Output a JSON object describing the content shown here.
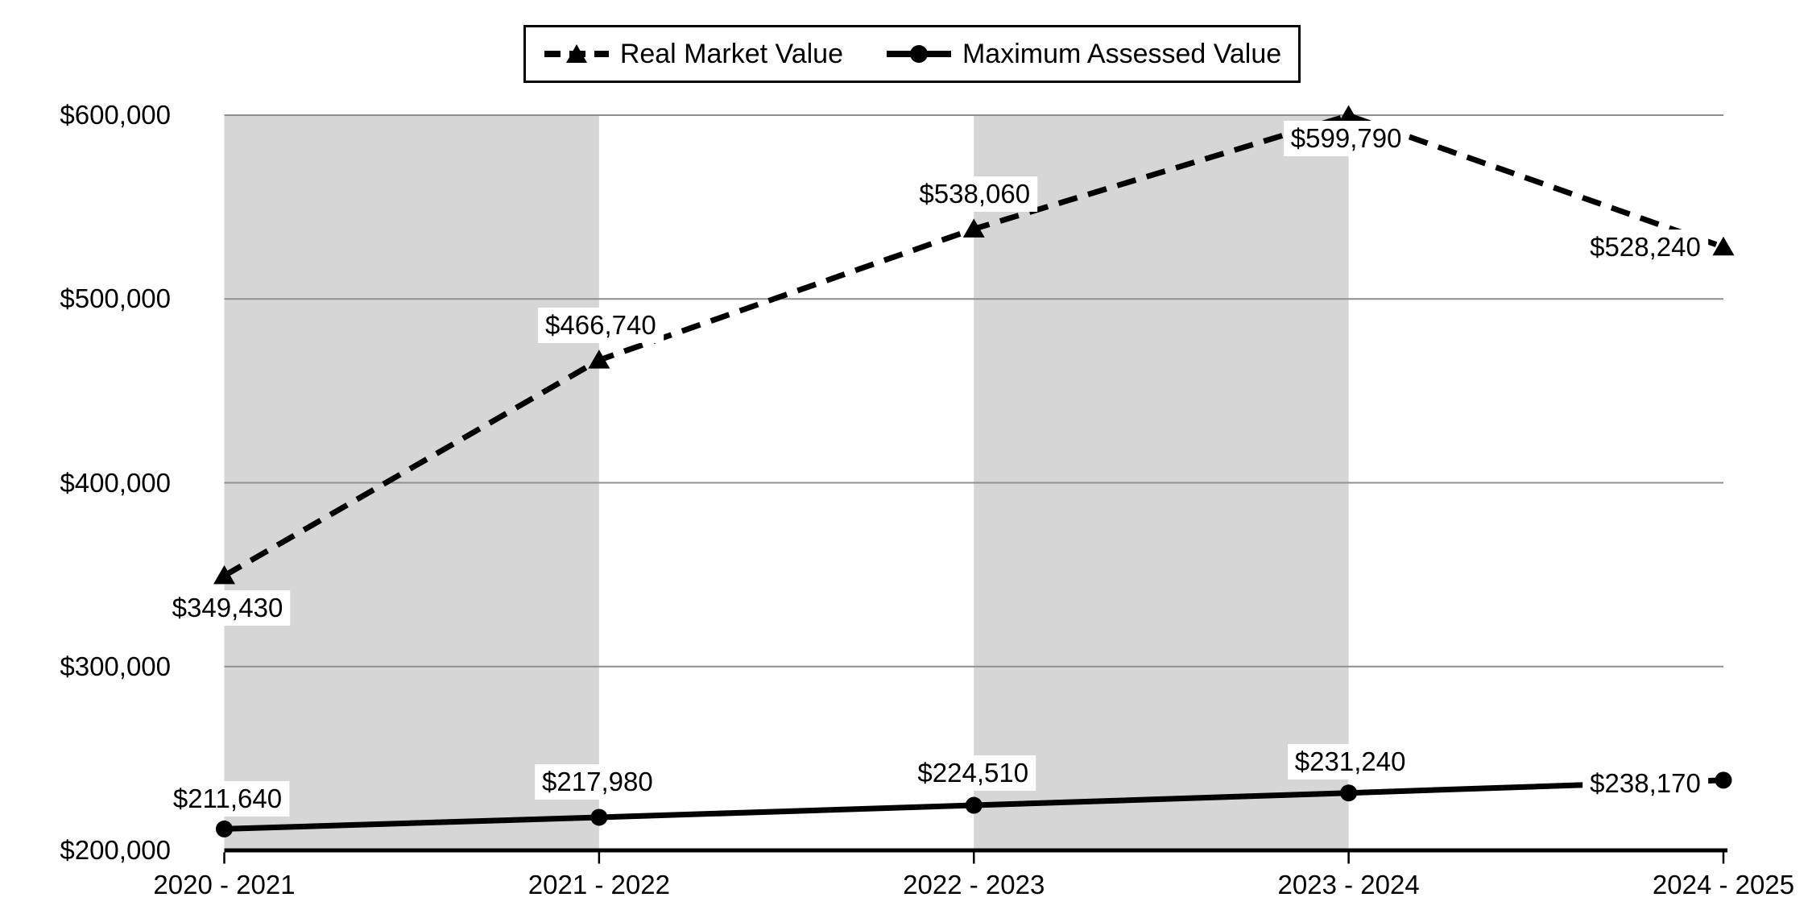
{
  "chart_data": {
    "type": "line",
    "title": "",
    "categories": [
      "2020 - 2021",
      "2021 - 2022",
      "2022 - 2023",
      "2023 - 2024",
      "2024 - 2025"
    ],
    "series": [
      {
        "name": "Real Market Value",
        "style": "dashed",
        "marker": "triangle",
        "values": [
          349430,
          466740,
          538060,
          599790,
          528240
        ],
        "point_labels": [
          "$349,430",
          "$466,740",
          "$538,060",
          "$599,790",
          "$528,240"
        ]
      },
      {
        "name": "Maximum Assessed Value",
        "style": "solid",
        "marker": "circle",
        "values": [
          211640,
          217980,
          224510,
          231240,
          238170
        ],
        "point_labels": [
          "$211,640",
          "$217,980",
          "$224,510",
          "$231,240",
          "$238,170"
        ]
      }
    ],
    "xlabel": "",
    "ylabel": "",
    "y_axis": {
      "min": 200000,
      "max": 600000,
      "step": 100000,
      "tick_labels": [
        "$200,000",
        "$300,000",
        "$400,000",
        "$500,000",
        "$600,000"
      ]
    },
    "grid": "horizontal",
    "legend_position": "top-center",
    "shaded_band_pairs": [
      [
        0,
        1
      ],
      [
        2,
        3
      ]
    ],
    "colors": {
      "series": "#000000",
      "band": "#D6D6D6",
      "gridline": "#8F8F8F",
      "axis": "#000000",
      "background": "#FFFFFF",
      "label_background": "#FFFFFF"
    }
  }
}
